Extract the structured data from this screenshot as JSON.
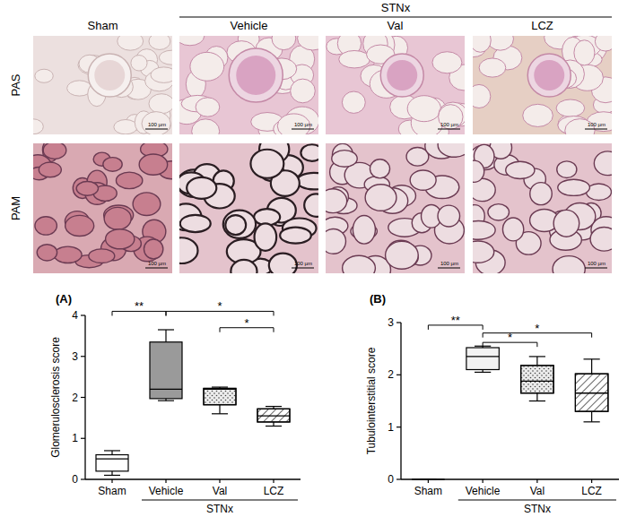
{
  "figure": {
    "group_label": "STNx",
    "columns": [
      "Sham",
      "Vehicle",
      "Val",
      "LCZ"
    ],
    "rows": [
      "PAS",
      "PAM"
    ],
    "scale_bar": "100 µm"
  },
  "chart_data": [
    {
      "type": "box",
      "title": "(A)",
      "y_label": "Glomerulosclerosis score",
      "categories": [
        "Sham",
        "Vehicle",
        "Val",
        "LCZ"
      ],
      "group_label": "STNx",
      "group": [
        1,
        3
      ],
      "colors": [
        "#ffffff",
        "#9a9a9a",
        "#ececec",
        "#ffffff"
      ],
      "boxes": [
        {
          "min": 0.1,
          "q1": 0.2,
          "median": 0.5,
          "q3": 0.6,
          "max": 0.7
        },
        {
          "min": 1.92,
          "q1": 1.97,
          "median": 2.2,
          "q3": 3.35,
          "max": 3.65
        },
        {
          "min": 1.6,
          "q1": 1.82,
          "median": 2.2,
          "q3": 2.22,
          "max": 2.25
        },
        {
          "min": 1.3,
          "q1": 1.4,
          "median": 1.55,
          "q3": 1.72,
          "max": 1.78
        }
      ],
      "ylim": [
        0,
        4
      ],
      "yticks": [
        0,
        1,
        2,
        3,
        4
      ],
      "annotations": [
        {
          "text": "**",
          "from": 0,
          "to": 1,
          "y": 4.1
        },
        {
          "text": "*",
          "from": 1,
          "to": 3,
          "y": 4.1
        },
        {
          "text": "*",
          "from": 2,
          "to": 3,
          "y": 3.7
        }
      ]
    },
    {
      "type": "box",
      "title": "(B)",
      "y_label": "Tubulointerstitial score",
      "categories": [
        "Sham",
        "Vehicle",
        "Val",
        "LCZ"
      ],
      "group_label": "STNx",
      "group": [
        1,
        3
      ],
      "colors": [
        "#ffffff",
        "#f2f2f2",
        "#ececec",
        "#ffffff"
      ],
      "boxes": [
        {
          "min": 0,
          "q1": 0,
          "median": 0,
          "q3": 0,
          "max": 0
        },
        {
          "min": 2.05,
          "q1": 2.1,
          "median": 2.35,
          "q3": 2.52,
          "max": 2.55
        },
        {
          "min": 1.5,
          "q1": 1.65,
          "median": 1.88,
          "q3": 2.18,
          "max": 2.35
        },
        {
          "min": 1.1,
          "q1": 1.3,
          "median": 1.65,
          "q3": 2.02,
          "max": 2.3
        }
      ],
      "ylim": [
        0,
        3
      ],
      "yticks": [
        0,
        1,
        2,
        3
      ],
      "annotations": [
        {
          "text": "**",
          "from": 0,
          "to": 1,
          "y": 2.95
        },
        {
          "text": "*",
          "from": 1,
          "to": 2,
          "y": 2.62
        },
        {
          "text": "*",
          "from": 1,
          "to": 3,
          "y": 2.8
        }
      ]
    }
  ]
}
